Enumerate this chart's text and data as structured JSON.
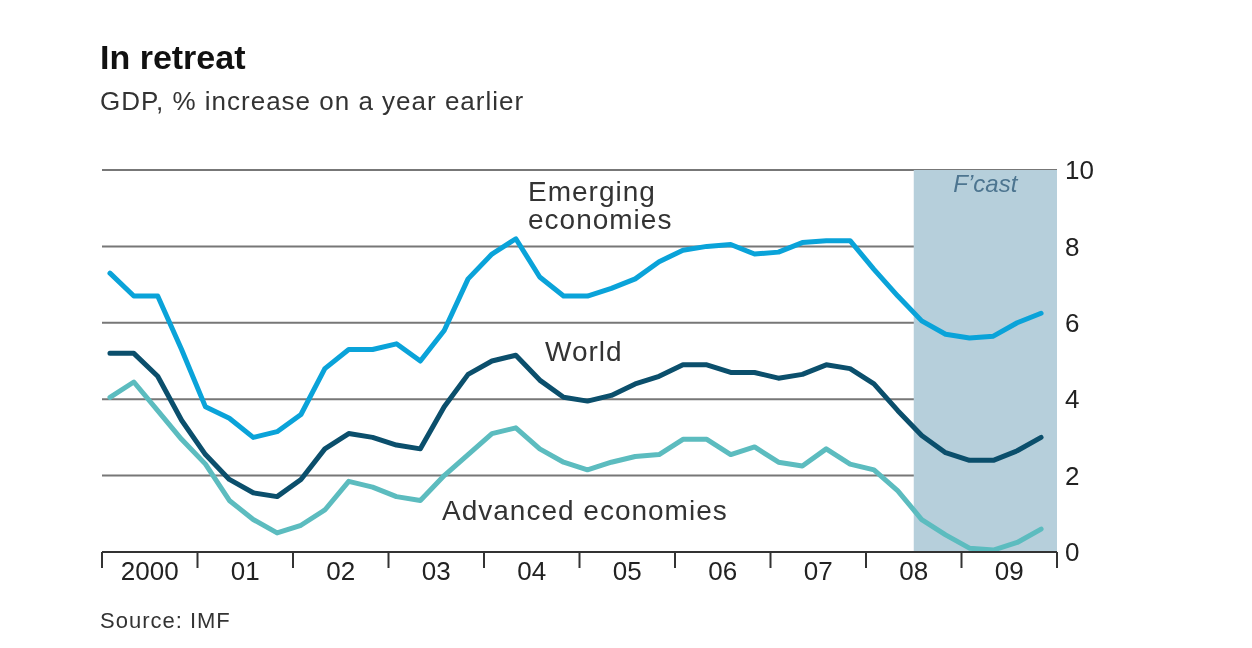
{
  "chart_data": {
    "type": "line",
    "title": "In retreat",
    "subtitle": "GDP, % increase on a year earlier",
    "x": [
      "2000-02",
      "2000-05",
      "2000-08",
      "2000-11",
      "2001-02",
      "2001-05",
      "2001-08",
      "2001-11",
      "2002-02",
      "2002-05",
      "2002-08",
      "2002-11",
      "2003-02",
      "2003-05",
      "2003-08",
      "2003-11",
      "2004-02",
      "2004-05",
      "2004-08",
      "2004-11",
      "2005-02",
      "2005-05",
      "2005-08",
      "2005-11",
      "2006-02",
      "2006-05",
      "2006-08",
      "2006-11",
      "2007-02",
      "2007-05",
      "2007-08",
      "2007-11",
      "2008-02",
      "2008-05",
      "2008-08",
      "2008-11",
      "2009-02",
      "2009-05",
      "2009-08",
      "2009-11"
    ],
    "series": [
      {
        "name": "Emerging economies",
        "color": "#0aa3d9",
        "values": [
          7.3,
          6.7,
          6.7,
          5.3,
          3.8,
          3.5,
          3.0,
          3.15,
          3.6,
          4.8,
          5.3,
          5.3,
          5.45,
          5.0,
          5.8,
          7.15,
          7.8,
          8.2,
          7.2,
          6.7,
          6.7,
          6.9,
          7.15,
          7.6,
          7.9,
          8.0,
          8.05,
          7.8,
          7.85,
          8.1,
          8.15,
          8.15,
          7.4,
          6.7,
          6.05,
          5.7,
          5.6,
          5.65,
          6.0,
          6.25
        ]
      },
      {
        "name": "World",
        "color": "#0b4f6c",
        "values": [
          5.2,
          5.2,
          4.6,
          3.45,
          2.55,
          1.9,
          1.55,
          1.45,
          1.9,
          2.7,
          3.1,
          3.0,
          2.8,
          2.7,
          3.8,
          4.65,
          5.0,
          5.15,
          4.5,
          4.05,
          3.95,
          4.1,
          4.4,
          4.6,
          4.9,
          4.9,
          4.7,
          4.7,
          4.55,
          4.65,
          4.9,
          4.8,
          4.4,
          3.7,
          3.05,
          2.6,
          2.4,
          2.4,
          2.65,
          3.0
        ]
      },
      {
        "name": "Advanced economies",
        "color": "#5cbcbf",
        "values": [
          4.05,
          4.45,
          3.7,
          2.95,
          2.3,
          1.35,
          0.85,
          0.5,
          0.7,
          1.1,
          1.85,
          1.7,
          1.45,
          1.35,
          2.0,
          2.55,
          3.1,
          3.25,
          2.7,
          2.35,
          2.15,
          2.35,
          2.5,
          2.55,
          2.95,
          2.95,
          2.55,
          2.75,
          2.35,
          2.25,
          2.7,
          2.3,
          2.15,
          1.6,
          0.85,
          0.45,
          0.1,
          0.05,
          0.25,
          0.6
        ]
      }
    ],
    "xlim": [
      "2000",
      "2010"
    ],
    "xticks": [
      {
        "value": "2000",
        "label": null
      },
      {
        "value": "2000-07",
        "label": "2000"
      },
      {
        "value": "2001",
        "label": null
      },
      {
        "value": "2001-07",
        "label": "01"
      },
      {
        "value": "2002",
        "label": null
      },
      {
        "value": "2002-07",
        "label": "02"
      },
      {
        "value": "2003",
        "label": null
      },
      {
        "value": "2003-07",
        "label": "03"
      },
      {
        "value": "2004",
        "label": null
      },
      {
        "value": "2004-07",
        "label": "04"
      },
      {
        "value": "2005",
        "label": null
      },
      {
        "value": "2005-07",
        "label": "05"
      },
      {
        "value": "2006",
        "label": null
      },
      {
        "value": "2006-07",
        "label": "06"
      },
      {
        "value": "2007",
        "label": null
      },
      {
        "value": "2007-07",
        "label": "07"
      },
      {
        "value": "2008",
        "label": null
      },
      {
        "value": "2008-07",
        "label": "08"
      },
      {
        "value": "2009",
        "label": null
      },
      {
        "value": "2009-07",
        "label": "09"
      },
      {
        "value": "2010",
        "label": null
      }
    ],
    "ylim": [
      0,
      10
    ],
    "yticks": [
      0,
      2,
      4,
      6,
      8,
      10
    ],
    "bands": [
      {
        "axis": "x",
        "from": "2008-07",
        "to": "2010",
        "label": "F’cast",
        "color": "#b6cfdb"
      }
    ],
    "grid": "y",
    "legend": false,
    "marker": "none",
    "line_style": "solid",
    "annotations": [
      "Source: IMF"
    ]
  }
}
